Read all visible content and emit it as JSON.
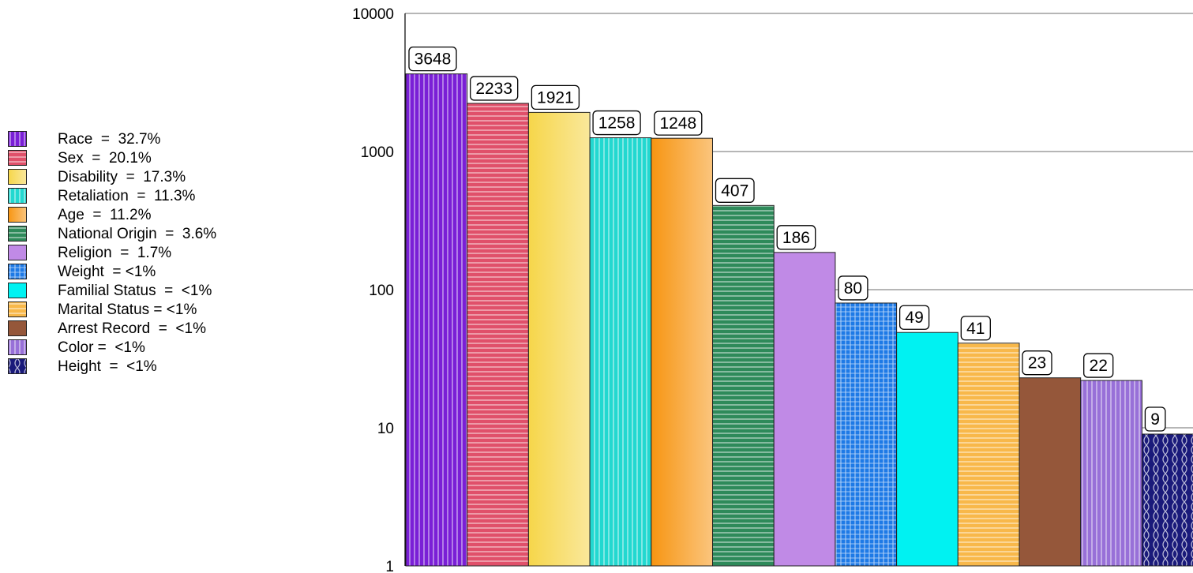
{
  "chart_data": {
    "type": "bar",
    "yscale": "log",
    "ylim": [
      1,
      10000
    ],
    "ytick_labels": [
      "1",
      "10",
      "100",
      "1000",
      "10000"
    ],
    "grid": "horizontal",
    "legend_position": "left",
    "categories": [
      "Race",
      "Sex",
      "Disability",
      "Retaliation",
      "Age",
      "National Origin",
      "Religion",
      "Weight",
      "Familial Status",
      "Marital Status",
      "Arrest Record",
      "Color",
      "Height"
    ],
    "values": [
      3648,
      2233,
      1921,
      1258,
      1248,
      407,
      186,
      80,
      49,
      41,
      23,
      22,
      9
    ],
    "data_labels": [
      "3648",
      "2233",
      "1921",
      "1258",
      "1248",
      "407",
      "186",
      "80",
      "49",
      "41",
      "23",
      "22",
      "9"
    ],
    "legend_labels": [
      "Race  =  32.7%",
      "Sex  =  20.1%",
      "Disability  =  17.3%",
      "Retaliation  =  11.3%",
      "Age  =  11.2%",
      "National Origin  =  3.6%",
      "Religion  =  1.7%",
      "Weight  = <1%",
      "Familial Status  =  <1%",
      "Marital Status = <1%",
      "Arrest Record  =  <1%",
      "Color =  <1%",
      "Height  =  <1%"
    ],
    "colors": [
      "#7a1fd6",
      "#e0506a",
      "#f6d64a",
      "#22d8d0",
      "#f79512",
      "#2e8a5a",
      "#c08ae6",
      "#1e7ae6",
      "#00f2f2",
      "#f8b84a",
      "#95573a",
      "#9870d8",
      "#1a1a7a"
    ],
    "patterns": [
      "vertical-lines",
      "horizontal-lines",
      "gradient",
      "vertical-lines",
      "gradient",
      "horizontal-lines",
      "solid",
      "grid",
      "solid",
      "horizontal-lines",
      "solid",
      "vertical-lines",
      "lattice"
    ]
  }
}
